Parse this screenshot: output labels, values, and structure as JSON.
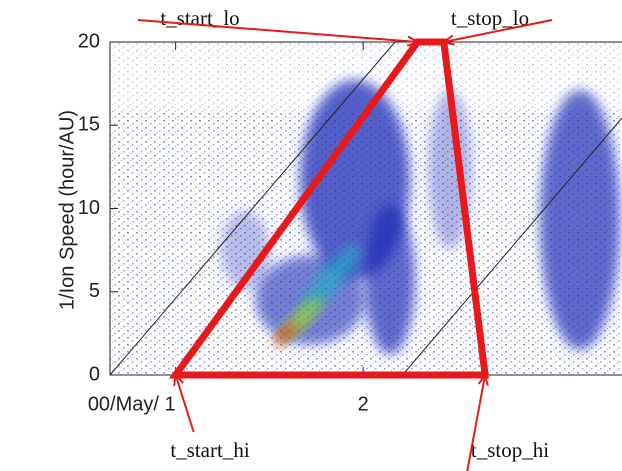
{
  "chart_data": {
    "type": "density",
    "y_label": "1/Ion Speed (hour/AU)",
    "xlim": [
      0.65,
      3.38
    ],
    "ylim": [
      0,
      20
    ],
    "xticks": [
      {
        "value": 1,
        "label": "00/May/ 1"
      },
      2
    ],
    "yticks": [
      0,
      5,
      10,
      15,
      20
    ],
    "shape": {
      "color": "#e8191b",
      "x": [
        1,
        2.29,
        2.43,
        2.65
      ],
      "y": [
        0,
        20,
        20,
        0
      ]
    },
    "annotations": [
      "t_start_hi",
      "t_start_lo",
      "t_stop_lo",
      "t_stop_hi"
    ]
  }
}
